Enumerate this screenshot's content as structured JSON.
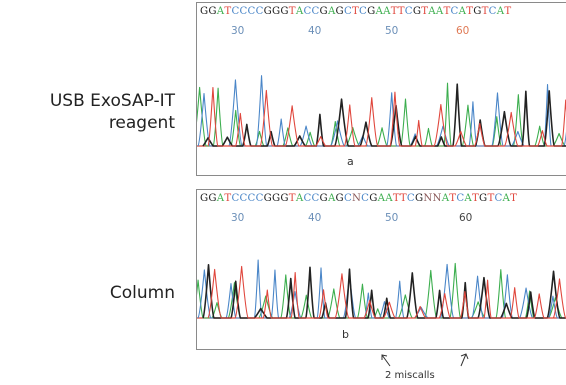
{
  "labels": {
    "top": [
      "USB ExoSAP-IT",
      "reagent"
    ],
    "bottom": [
      "Column"
    ]
  },
  "panel_a": {
    "sequence": "GGATCCCCGGGTACCGAGCTCGAATTCGTAATCATGTCAT",
    "positions": [
      "30",
      "40",
      "50",
      "60"
    ],
    "letter": "a"
  },
  "panel_b": {
    "sequence": "GGATCCCCGGGTACCGAGCNCGAATTCGNNATCATGTCAT",
    "positions": [
      "30",
      "40",
      "50",
      "60"
    ],
    "letter": "b"
  },
  "annotation": "2 miscalls",
  "colors": {
    "A": "#3cae4e",
    "C": "#4a86c8",
    "G": "#222222",
    "T": "#e0463c",
    "N": "#8a5a5a",
    "baseline": "#d94a3a",
    "border": "#8a8a8a"
  }
}
